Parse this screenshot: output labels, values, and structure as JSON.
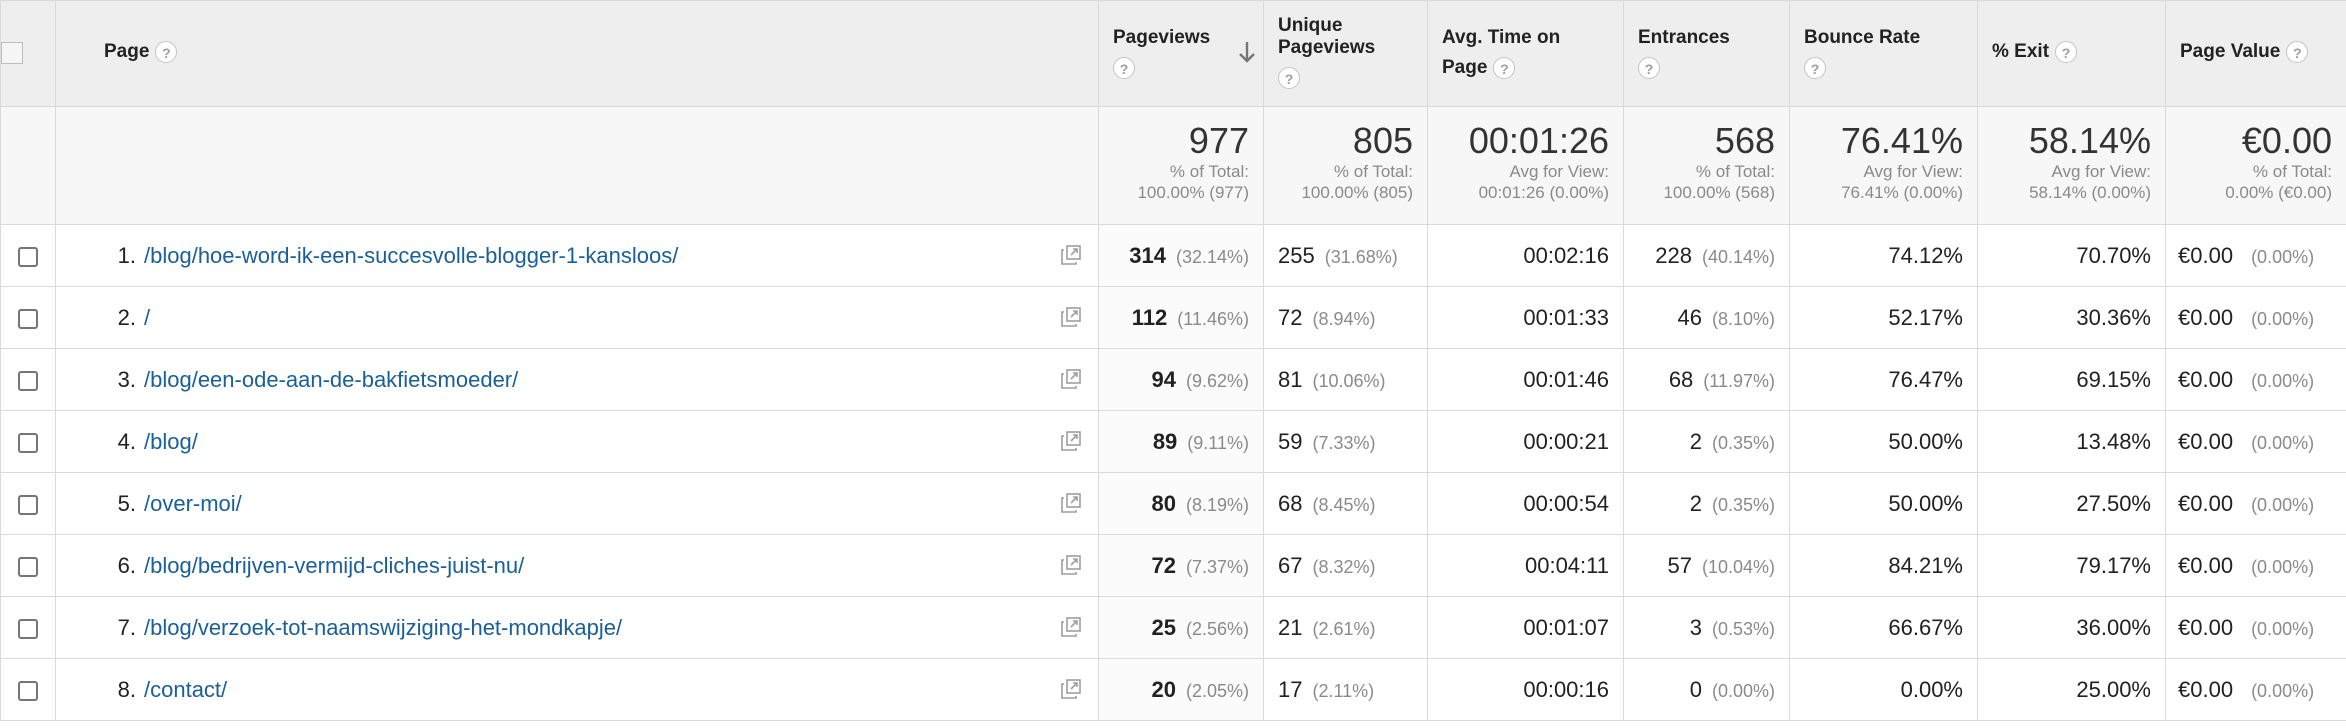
{
  "columns": {
    "page": "Page",
    "pageviews": "Pageviews",
    "unique_pageviews": "Unique Pageviews",
    "avg_time": "Avg. Time on Page",
    "entrances": "Entrances",
    "bounce_rate": "Bounce Rate",
    "pct_exit": "% Exit",
    "page_value": "Page Value"
  },
  "help_glyph": "?",
  "totals": {
    "pageviews": {
      "value": "977",
      "l1": "% of Total:",
      "l2": "100.00% (977)"
    },
    "unique_pageviews": {
      "value": "805",
      "l1": "% of Total:",
      "l2": "100.00% (805)"
    },
    "avg_time": {
      "value": "00:01:26",
      "l1": "Avg for View:",
      "l2": "00:01:26 (0.00%)"
    },
    "entrances": {
      "value": "568",
      "l1": "% of Total:",
      "l2": "100.00% (568)"
    },
    "bounce_rate": {
      "value": "76.41%",
      "l1": "Avg for View:",
      "l2": "76.41% (0.00%)"
    },
    "pct_exit": {
      "value": "58.14%",
      "l1": "Avg for View:",
      "l2": "58.14% (0.00%)"
    },
    "page_value": {
      "value": "€0.00",
      "l1": "% of Total:",
      "l2": "0.00% (€0.00)"
    }
  },
  "rows": [
    {
      "num": "1.",
      "page": "/blog/hoe-word-ik-een-succesvolle-blogger-1-kansloos/",
      "pv": "314",
      "pv_pct": "(32.14%)",
      "upv": "255",
      "upv_pct": "(31.68%)",
      "time": "00:02:16",
      "ent": "228",
      "ent_pct": "(40.14%)",
      "bounce": "74.12%",
      "exit": "70.70%",
      "value": "€0.00",
      "value_pct": "(0.00%)"
    },
    {
      "num": "2.",
      "page": "/",
      "pv": "112",
      "pv_pct": "(11.46%)",
      "upv": "72",
      "upv_pct": "(8.94%)",
      "time": "00:01:33",
      "ent": "46",
      "ent_pct": "(8.10%)",
      "bounce": "52.17%",
      "exit": "30.36%",
      "value": "€0.00",
      "value_pct": "(0.00%)"
    },
    {
      "num": "3.",
      "page": "/blog/een-ode-aan-de-bakfietsmoeder/",
      "pv": "94",
      "pv_pct": "(9.62%)",
      "upv": "81",
      "upv_pct": "(10.06%)",
      "time": "00:01:46",
      "ent": "68",
      "ent_pct": "(11.97%)",
      "bounce": "76.47%",
      "exit": "69.15%",
      "value": "€0.00",
      "value_pct": "(0.00%)"
    },
    {
      "num": "4.",
      "page": "/blog/",
      "pv": "89",
      "pv_pct": "(9.11%)",
      "upv": "59",
      "upv_pct": "(7.33%)",
      "time": "00:00:21",
      "ent": "2",
      "ent_pct": "(0.35%)",
      "bounce": "50.00%",
      "exit": "13.48%",
      "value": "€0.00",
      "value_pct": "(0.00%)"
    },
    {
      "num": "5.",
      "page": "/over-moi/",
      "pv": "80",
      "pv_pct": "(8.19%)",
      "upv": "68",
      "upv_pct": "(8.45%)",
      "time": "00:00:54",
      "ent": "2",
      "ent_pct": "(0.35%)",
      "bounce": "50.00%",
      "exit": "27.50%",
      "value": "€0.00",
      "value_pct": "(0.00%)"
    },
    {
      "num": "6.",
      "page": "/blog/bedrijven-vermijd-cliches-juist-nu/",
      "pv": "72",
      "pv_pct": "(7.37%)",
      "upv": "67",
      "upv_pct": "(8.32%)",
      "time": "00:04:11",
      "ent": "57",
      "ent_pct": "(10.04%)",
      "bounce": "84.21%",
      "exit": "79.17%",
      "value": "€0.00",
      "value_pct": "(0.00%)"
    },
    {
      "num": "7.",
      "page": "/blog/verzoek-tot-naamswijziging-het-mondkapje/",
      "pv": "25",
      "pv_pct": "(2.56%)",
      "upv": "21",
      "upv_pct": "(2.61%)",
      "time": "00:01:07",
      "ent": "3",
      "ent_pct": "(0.53%)",
      "bounce": "66.67%",
      "exit": "36.00%",
      "value": "€0.00",
      "value_pct": "(0.00%)"
    },
    {
      "num": "8.",
      "page": "/contact/",
      "pv": "20",
      "pv_pct": "(2.05%)",
      "upv": "17",
      "upv_pct": "(2.11%)",
      "time": "00:00:16",
      "ent": "0",
      "ent_pct": "(0.00%)",
      "bounce": "0.00%",
      "exit": "25.00%",
      "value": "€0.00",
      "value_pct": "(0.00%)"
    }
  ]
}
